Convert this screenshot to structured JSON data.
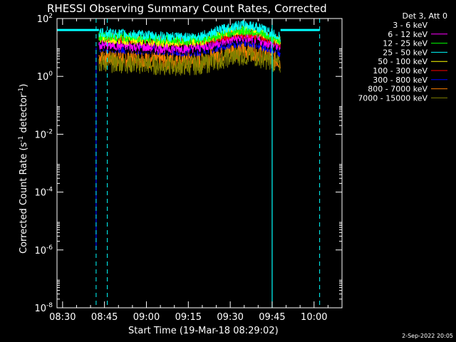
{
  "chart_data": {
    "type": "line",
    "title": "RHESSI Observing Summary Count Rates, Corrected",
    "xlabel": "Start Time (19-Mar-18 08:29:02)",
    "ylabel": {
      "pre": "Corrected Count Rate (s",
      "sup1": "-1",
      "mid": " detector",
      "sup2": "-1",
      "post": ")"
    },
    "y_scale": "log",
    "ylim": [
      1e-08,
      100
    ],
    "y_ticks": [
      {
        "value": 1e-08,
        "base": "10",
        "exp": "-8"
      },
      {
        "value": 1e-06,
        "base": "10",
        "exp": "-6"
      },
      {
        "value": 0.0001,
        "base": "10",
        "exp": "-4"
      },
      {
        "value": 0.01,
        "base": "10",
        "exp": "-2"
      },
      {
        "value": 1,
        "base": "10",
        "exp": "0"
      },
      {
        "value": 100,
        "base": "10",
        "exp": "2"
      }
    ],
    "xlim": [
      "08:28",
      "10:10"
    ],
    "x_ticks": [
      "08:30",
      "08:45",
      "09:00",
      "09:15",
      "09:30",
      "09:45",
      "10:00"
    ],
    "legend_header": "Det 3, Att 0",
    "legend_position": "top-right, outside plot",
    "series": [
      {
        "name": "3 - 6 keV",
        "color": "#000000",
        "level_start": 10,
        "level_mid": 7,
        "level_peak": 18
      },
      {
        "name": "6 - 12 keV",
        "color": "#ff00ff",
        "level_start": 12,
        "level_mid": 8,
        "level_peak": 20
      },
      {
        "name": "12 - 25 keV",
        "color": "#00ff00",
        "level_start": 25,
        "level_mid": 13,
        "level_peak": 35
      },
      {
        "name": "25 - 50 keV",
        "color": "#00ffff",
        "level_start": 32,
        "level_mid": 15,
        "level_peak": 55
      },
      {
        "name": "50 - 100 keV",
        "color": "#ffff00",
        "level_start": 20,
        "level_mid": 11,
        "level_peak": 40
      },
      {
        "name": "100 - 300 keV",
        "color": "#ff0000",
        "level_start": 22,
        "level_mid": 12,
        "level_peak": 28
      },
      {
        "name": "300 - 800 keV",
        "color": "#0000ff",
        "level_start": 10,
        "level_mid": 5,
        "level_peak": 14
      },
      {
        "name": "800 - 7000 keV",
        "color": "#ff7f00",
        "level_start": 5,
        "level_mid": 2.5,
        "level_peak": 8
      },
      {
        "name": "7000 - 15000 keV",
        "color": "#7f7f00",
        "level_start": 3,
        "level_mid": 2,
        "level_peak": 5
      }
    ],
    "data_interval": [
      "08:43",
      "09:48"
    ],
    "flare_peak_time": "09:35",
    "cyan_flag_level": 40,
    "cyan_flag_intervals": [
      [
        "08:28",
        "08:43"
      ],
      [
        "09:48",
        "10:02"
      ]
    ],
    "cyan_solid_vlines": [
      "09:45"
    ],
    "cyan_dashed_vlines": [
      "08:42",
      "08:46",
      "10:02"
    ],
    "initial_blue_drop": {
      "time": "08:42",
      "from": 1e-06,
      "to": 10
    }
  },
  "footer": {
    "timestamp": "2-Sep-2022 20:05"
  }
}
